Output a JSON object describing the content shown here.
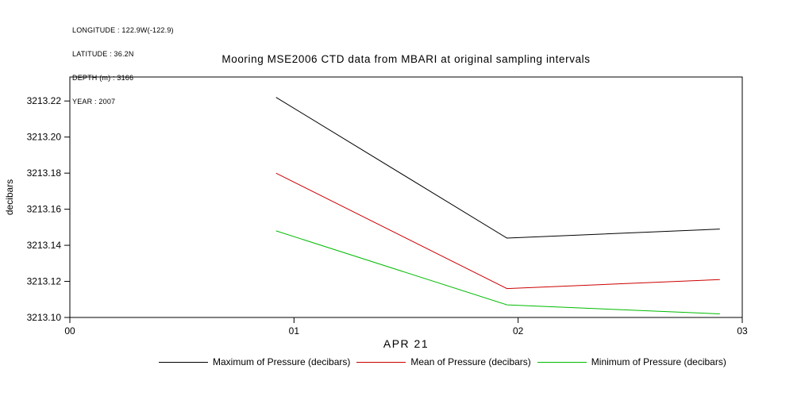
{
  "header": {
    "meta_lines": [
      "LONGITUDE : 122.9W(-122.9)",
      "LATITUDE : 36.2N",
      "DEPTH (m) : 3166",
      "YEAR : 2007"
    ]
  },
  "chart_data": {
    "type": "line",
    "title": "Mooring MSE2006 CTD data from MBARI at original sampling intervals",
    "xlabel": "APR 21",
    "ylabel": "decibars",
    "xlim": [
      0,
      3
    ],
    "ylim": [
      3213.1,
      3213.2333
    ],
    "grid": false,
    "legend_position": "bottom",
    "xtick_values": [
      0,
      1,
      2,
      3
    ],
    "xtick_labels": [
      "00",
      "01",
      "02",
      "03"
    ],
    "ytick_values": [
      3213.1,
      3213.12,
      3213.14,
      3213.16,
      3213.18,
      3213.2,
      3213.22
    ],
    "ytick_labels": [
      "3213.10",
      "3213.12",
      "3213.14",
      "3213.16",
      "3213.18",
      "3213.20",
      "3213.22"
    ],
    "x": [
      0.92,
      1.95,
      2.9
    ],
    "series": [
      {
        "name": "Maximum of Pressure (decibars)",
        "color": "#000000",
        "values": [
          3213.222,
          3213.144,
          3213.149
        ]
      },
      {
        "name": "Mean of Pressure (decibars)",
        "color": "#cc0000",
        "values": [
          3213.18,
          3213.116,
          3213.121
        ]
      },
      {
        "name": "Minimum of Pressure (decibars)",
        "color": "#00bb00",
        "values": [
          3213.148,
          3213.107,
          3213.102
        ]
      }
    ]
  }
}
